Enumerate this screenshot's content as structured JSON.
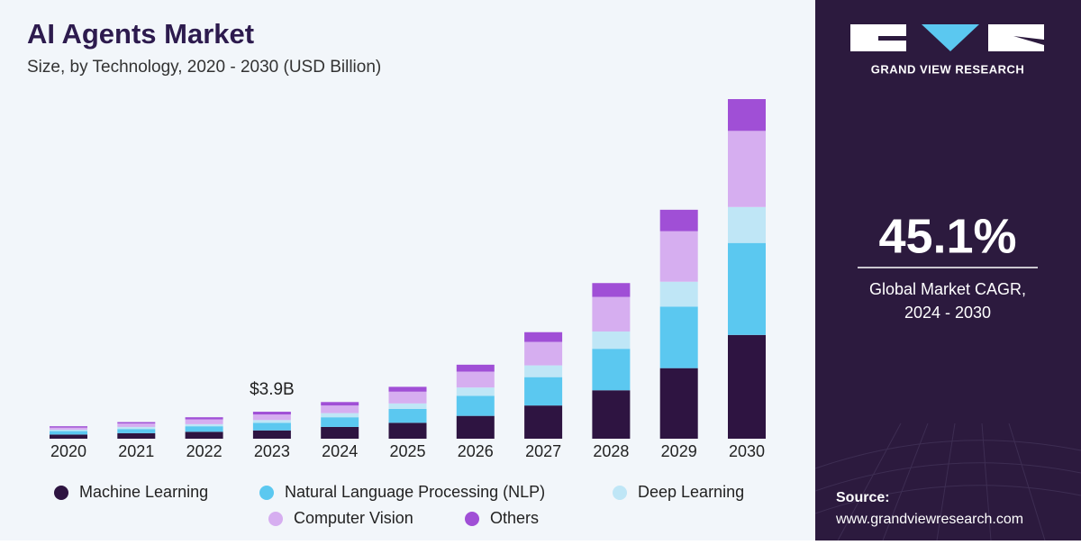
{
  "chart_data": {
    "type": "stacked_bar",
    "title": "AI Agents Market",
    "subtitle": "Size, by Technology, 2020 - 2030 (USD Billion)",
    "categories": [
      "2020",
      "2021",
      "2022",
      "2023",
      "2024",
      "2025",
      "2026",
      "2027",
      "2028",
      "2029",
      "2030"
    ],
    "series": [
      {
        "name": "Machine Learning",
        "color": "#2e1441",
        "values": [
          0.6,
          0.8,
          1.0,
          1.2,
          1.7,
          2.3,
          3.3,
          4.8,
          7.0,
          10.2,
          15.0
        ]
      },
      {
        "name": "Natural Language Processing (NLP)",
        "color": "#5bc8f0",
        "values": [
          0.5,
          0.6,
          0.8,
          1.1,
          1.4,
          2.0,
          2.9,
          4.1,
          6.0,
          8.9,
          13.3
        ]
      },
      {
        "name": "Deep Learning",
        "color": "#bfe6f6",
        "values": [
          0.2,
          0.3,
          0.3,
          0.4,
          0.6,
          0.8,
          1.2,
          1.7,
          2.5,
          3.6,
          5.2
        ]
      },
      {
        "name": "Computer Vision",
        "color": "#d6aef0",
        "values": [
          0.3,
          0.5,
          0.7,
          0.8,
          1.1,
          1.7,
          2.3,
          3.4,
          5.0,
          7.3,
          11.0
        ]
      },
      {
        "name": "Others",
        "color": "#a04fd6",
        "values": [
          0.2,
          0.2,
          0.3,
          0.4,
          0.5,
          0.7,
          1.0,
          1.4,
          2.0,
          3.1,
          4.6
        ]
      }
    ],
    "annotations": [
      {
        "category": "2023",
        "value": 3.9,
        "label": "$3.9B"
      }
    ]
  },
  "sidebar": {
    "brand": "GRAND VIEW RESEARCH",
    "cagr": "45.1%",
    "cagr_label": [
      "Global Market CAGR,",
      "2024 - 2030"
    ],
    "source_label": "Source:",
    "source_url": "www.grandviewresearch.com"
  }
}
